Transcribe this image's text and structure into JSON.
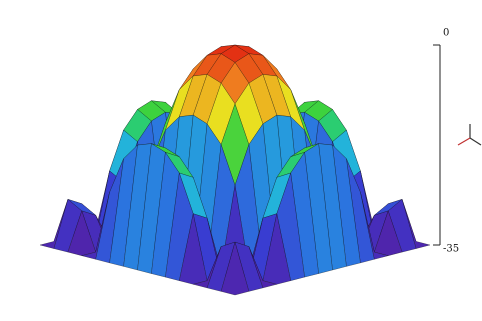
{
  "chart_data": {
    "type": "surface",
    "zlim": [
      -35,
      0
    ],
    "zticks": [
      0,
      -35
    ],
    "colors": [
      "#5a1a9a",
      "#3a3ad0",
      "#2a7ae0",
      "#20c8d8",
      "#30d040",
      "#e8e820",
      "#f08020",
      "#e02010"
    ],
    "edge_color": "#111111",
    "z": [
      [
        -35,
        -35,
        -35,
        -35,
        -35,
        -35,
        -35,
        -35,
        -35,
        -35,
        -35,
        -35,
        -35,
        -35,
        -35
      ],
      [
        -35,
        -27,
        -28.4,
        -35,
        -23.9,
        -17.4,
        -14.4,
        -13.5,
        -14.4,
        -17.4,
        -23.9,
        -35,
        -28.4,
        -27,
        -35
      ],
      [
        -35,
        -28.4,
        -29.8,
        -35,
        -25.3,
        -18.8,
        -15.8,
        -14.9,
        -15.8,
        -18.8,
        -25.3,
        -35,
        -29.8,
        -28.4,
        -35
      ],
      [
        -35,
        -35,
        -35,
        -35,
        -35,
        -35,
        -35,
        -35,
        -35,
        -35,
        -35,
        -35,
        -35,
        -35,
        -35
      ],
      [
        -35,
        -23.9,
        -25.3,
        -35,
        -20.8,
        -14.3,
        -11.3,
        -10.4,
        -11.3,
        -14.3,
        -20.8,
        -35,
        -25.3,
        -23.9,
        -35
      ],
      [
        -35,
        -17.4,
        -18.8,
        -35,
        -14.3,
        -7.8,
        -4.8,
        -3.9,
        -4.8,
        -7.8,
        -14.3,
        -35,
        -18.8,
        -17.4,
        -35
      ],
      [
        -35,
        -14.4,
        -15.8,
        -35,
        -11.3,
        -4.8,
        -1.8,
        -0.9,
        -1.8,
        -4.8,
        -11.3,
        -35,
        -15.8,
        -14.4,
        -35
      ],
      [
        -35,
        -13.5,
        -14.9,
        -35,
        -10.4,
        -3.9,
        -0.9,
        0,
        -0.9,
        -3.9,
        -10.4,
        -35,
        -14.9,
        -13.5,
        -35
      ],
      [
        -35,
        -14.4,
        -15.8,
        -35,
        -11.3,
        -4.8,
        -1.8,
        -0.9,
        -1.8,
        -4.8,
        -11.3,
        -35,
        -15.8,
        -14.4,
        -35
      ],
      [
        -35,
        -17.4,
        -18.8,
        -35,
        -14.3,
        -7.8,
        -4.8,
        -3.9,
        -4.8,
        -7.8,
        -14.3,
        -35,
        -18.8,
        -17.4,
        -35
      ],
      [
        -35,
        -23.9,
        -25.3,
        -35,
        -20.8,
        -14.3,
        -11.3,
        -10.4,
        -11.3,
        -14.3,
        -20.8,
        -35,
        -25.3,
        -23.9,
        -35
      ],
      [
        -35,
        -35,
        -35,
        -35,
        -35,
        -35,
        -35,
        -35,
        -35,
        -35,
        -35,
        -35,
        -35,
        -35,
        -35
      ],
      [
        -35,
        -28.4,
        -29.8,
        -35,
        -25.3,
        -18.8,
        -15.8,
        -14.9,
        -15.8,
        -18.8,
        -25.3,
        -35,
        -29.8,
        -28.4,
        -35
      ],
      [
        -35,
        -27,
        -28.4,
        -35,
        -23.9,
        -17.4,
        -14.4,
        -13.5,
        -14.4,
        -17.4,
        -23.9,
        -35,
        -28.4,
        -27,
        -35
      ],
      [
        -35,
        -35,
        -35,
        -35,
        -35,
        -35,
        -35,
        -35,
        -35,
        -35,
        -35,
        -35,
        -35,
        -35,
        -35
      ]
    ]
  }
}
